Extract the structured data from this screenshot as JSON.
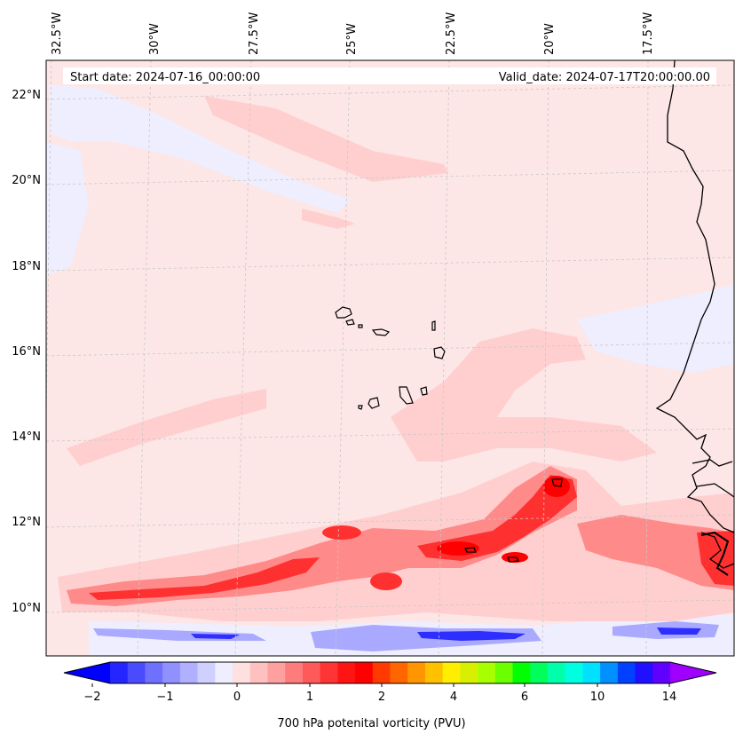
{
  "map": {
    "start_date": "Start date: 2024-07-16_00:00:00",
    "valid_date": "Valid_date: 2024-07-17T20:00:00.00",
    "lon_labels": [
      "32.5°W",
      "30°W",
      "27.5°W",
      "25°W",
      "22.5°W",
      "20°W",
      "17.5°W"
    ],
    "lat_labels": [
      "22°N",
      "20°N",
      "18°N",
      "16°N",
      "14°N",
      "12°N",
      "10°N"
    ],
    "features": [
      "coastline-africa",
      "cabo-verde-islands",
      "potential-vorticity-field"
    ],
    "colors": {
      "background": "#fde6e6",
      "light_positive": "#ffcfcf",
      "medium_positive": "#ff8a8a",
      "strong_positive": "#ff3030",
      "peak_positive": "#ff0000",
      "light_negative": "#eeeeff",
      "medium_negative": "#a9a9ff",
      "strong_negative": "#2e2eff",
      "coast": "#000000"
    }
  },
  "colorbar": {
    "label": "700 hPa potenital vorticity (PVU)",
    "tick_labels": [
      "−2",
      "−1",
      "0",
      "1",
      "2",
      "4",
      "6",
      "10",
      "14"
    ],
    "colors": [
      "#0000ff",
      "#2525ff",
      "#4a4aff",
      "#7070ff",
      "#9090ff",
      "#b0b0ff",
      "#d0d0ff",
      "#eeeeff",
      "#ffe0e0",
      "#ffc0c0",
      "#ffa0a0",
      "#ff7c7c",
      "#ff5a5a",
      "#ff3535",
      "#ff1414",
      "#ff0000",
      "#ff3a00",
      "#ff6600",
      "#ff9500",
      "#ffc000",
      "#ffee00",
      "#d8f000",
      "#a8ff00",
      "#6cff00",
      "#00ff00",
      "#00ff5a",
      "#00ffaa",
      "#00ffe0",
      "#00e0ff",
      "#0090ff",
      "#0040ff",
      "#2010ff",
      "#6000ff",
      "#a000ff"
    ]
  }
}
